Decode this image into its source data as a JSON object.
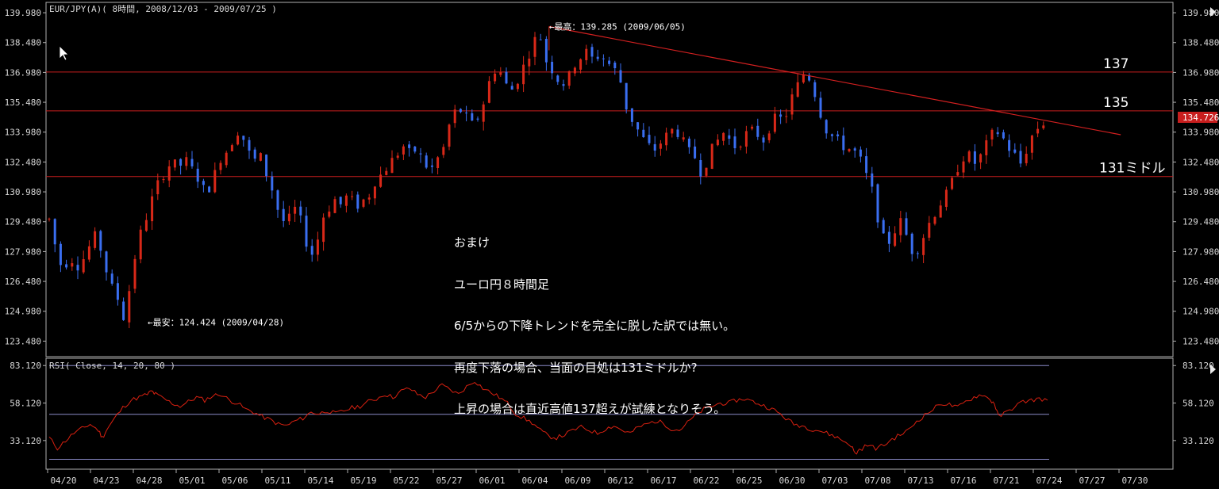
{
  "chart_data": {
    "type": "candlestick",
    "title": "EUR/JPY(A)( 8時間, 2008/12/03 - 2009/07/25 )",
    "price_axis": {
      "ylim": [
        122.7,
        140.5
      ],
      "ticks": [
        "139.980",
        "138.480",
        "136.980",
        "135.480",
        "133.980",
        "132.480",
        "130.980",
        "129.480",
        "127.980",
        "126.480",
        "124.980",
        "123.480"
      ],
      "current_price": "134.726"
    },
    "rsi_panel": {
      "label": "RSI( Close, 14, 20, 80 )",
      "ylim": [
        14,
        88
      ],
      "ticks": [
        "83.120",
        "58.120",
        "33.120"
      ],
      "levels": [
        83.12,
        50.62,
        20.62
      ]
    },
    "x_labels": [
      "04/20",
      "04/23",
      "04/28",
      "05/01",
      "05/06",
      "05/11",
      "05/14",
      "05/19",
      "05/22",
      "05/27",
      "06/01",
      "06/04",
      "06/09",
      "06/12",
      "06/17",
      "06/22",
      "06/25",
      "06/30",
      "07/03",
      "07/08",
      "07/13",
      "07/16",
      "07/21",
      "07/24",
      "07/27",
      "07/30"
    ],
    "horizontal_lines": [
      {
        "value": 137.0,
        "label": "137"
      },
      {
        "value": 135.05,
        "label": "135"
      },
      {
        "value": 131.75,
        "label": "131ミドル"
      }
    ],
    "trendline": {
      "from": {
        "date": "06/05",
        "value": 139.285
      },
      "to": {
        "date": "07/29",
        "value": 133.85
      }
    },
    "annotations": [
      {
        "text": "←最高：139.285 (2009/06/05)",
        "date": "06/05",
        "value": 139.285
      },
      {
        "text": "←最安：124.424 (2009/04/28)",
        "date": "04/28",
        "value": 124.424
      }
    ],
    "price_path": [
      [
        0,
        129.6
      ],
      [
        5,
        128.1
      ],
      [
        10,
        127.0
      ],
      [
        15,
        127.8
      ],
      [
        20,
        127.2
      ],
      [
        25,
        127.6
      ],
      [
        30,
        128.3
      ],
      [
        35,
        128.9
      ],
      [
        40,
        127.5
      ],
      [
        45,
        126.3
      ],
      [
        50,
        125.7
      ],
      [
        55,
        124.6
      ],
      [
        60,
        126.5
      ],
      [
        65,
        128.5
      ],
      [
        70,
        129.4
      ],
      [
        75,
        130.5
      ],
      [
        80,
        131.4
      ],
      [
        85,
        132.0
      ],
      [
        90,
        132.5
      ],
      [
        95,
        132.2
      ],
      [
        100,
        132.6
      ],
      [
        105,
        132.1
      ],
      [
        110,
        131.6
      ],
      [
        115,
        130.9
      ],
      [
        120,
        131.5
      ],
      [
        125,
        132.6
      ],
      [
        130,
        133.0
      ],
      [
        135,
        133.6
      ],
      [
        140,
        134.2
      ],
      [
        145,
        133.2
      ],
      [
        150,
        132.5
      ],
      [
        155,
        132.8
      ],
      [
        160,
        131.8
      ],
      [
        165,
        130.9
      ],
      [
        170,
        129.6
      ],
      [
        175,
        129.4
      ],
      [
        180,
        130.2
      ],
      [
        185,
        129.5
      ],
      [
        190,
        128.2
      ],
      [
        195,
        127.7
      ],
      [
        200,
        129.6
      ],
      [
        205,
        130.1
      ],
      [
        210,
        130.6
      ],
      [
        215,
        130.3
      ],
      [
        220,
        130.9
      ],
      [
        225,
        130.2
      ],
      [
        230,
        130.5
      ],
      [
        235,
        130.8
      ],
      [
        240,
        131.6
      ],
      [
        245,
        131.9
      ],
      [
        250,
        132.4
      ],
      [
        255,
        132.8
      ],
      [
        260,
        133.3
      ],
      [
        265,
        132.9
      ],
      [
        270,
        133.1
      ],
      [
        275,
        132.5
      ],
      [
        280,
        132.0
      ],
      [
        285,
        132.6
      ],
      [
        290,
        133.2
      ],
      [
        295,
        134.6
      ],
      [
        300,
        135.2
      ],
      [
        305,
        134.9
      ],
      [
        310,
        134.3
      ],
      [
        315,
        134.7
      ],
      [
        320,
        135.6
      ],
      [
        325,
        136.9
      ],
      [
        330,
        137.3
      ],
      [
        335,
        136.4
      ],
      [
        340,
        136.1
      ],
      [
        345,
        136.7
      ],
      [
        350,
        137.5
      ],
      [
        355,
        138.3
      ],
      [
        360,
        139.1
      ],
      [
        365,
        137.6
      ],
      [
        370,
        137.1
      ],
      [
        375,
        136.5
      ],
      [
        380,
        136.4
      ],
      [
        385,
        137.3
      ],
      [
        390,
        137.7
      ],
      [
        395,
        138.0
      ],
      [
        400,
        137.6
      ],
      [
        405,
        137.9
      ],
      [
        410,
        137.5
      ],
      [
        415,
        137.2
      ],
      [
        420,
        136.5
      ],
      [
        425,
        135.0
      ],
      [
        430,
        134.4
      ],
      [
        435,
        133.8
      ],
      [
        440,
        133.3
      ],
      [
        445,
        133.1
      ],
      [
        450,
        133.5
      ],
      [
        455,
        133.9
      ],
      [
        460,
        134.2
      ],
      [
        465,
        133.6
      ],
      [
        470,
        133.0
      ],
      [
        475,
        132.7
      ],
      [
        480,
        131.8
      ],
      [
        485,
        132.9
      ],
      [
        490,
        133.4
      ],
      [
        495,
        134.0
      ],
      [
        500,
        133.6
      ],
      [
        505,
        133.2
      ],
      [
        510,
        133.7
      ],
      [
        515,
        134.1
      ],
      [
        520,
        133.9
      ],
      [
        525,
        133.6
      ],
      [
        530,
        134.3
      ],
      [
        535,
        134.8
      ],
      [
        540,
        134.5
      ],
      [
        545,
        135.6
      ],
      [
        550,
        136.3
      ],
      [
        555,
        137.0
      ],
      [
        560,
        136.6
      ],
      [
        565,
        135.4
      ],
      [
        570,
        134.2
      ],
      [
        575,
        133.8
      ],
      [
        580,
        133.5
      ],
      [
        585,
        133.2
      ],
      [
        590,
        133.1
      ],
      [
        595,
        132.8
      ],
      [
        600,
        131.9
      ],
      [
        605,
        131.0
      ],
      [
        610,
        129.4
      ],
      [
        615,
        128.2
      ],
      [
        620,
        128.8
      ],
      [
        625,
        129.6
      ],
      [
        630,
        128.8
      ],
      [
        635,
        127.9
      ],
      [
        640,
        128.3
      ],
      [
        645,
        129.2
      ],
      [
        650,
        129.8
      ],
      [
        655,
        130.4
      ],
      [
        660,
        130.9
      ],
      [
        665,
        131.7
      ],
      [
        670,
        132.6
      ],
      [
        675,
        132.9
      ],
      [
        680,
        132.4
      ],
      [
        685,
        132.8
      ],
      [
        690,
        133.5
      ],
      [
        695,
        134.1
      ],
      [
        700,
        133.8
      ],
      [
        705,
        133.2
      ],
      [
        710,
        132.8
      ],
      [
        715,
        132.3
      ],
      [
        720,
        133.5
      ],
      [
        725,
        134.1
      ],
      [
        730,
        134.4
      ],
      [
        735,
        134.7
      ]
    ],
    "rsi_path": [
      [
        0,
        35
      ],
      [
        10,
        28
      ],
      [
        20,
        33
      ],
      [
        30,
        38
      ],
      [
        40,
        41
      ],
      [
        50,
        44
      ],
      [
        60,
        40
      ],
      [
        65,
        35
      ],
      [
        70,
        40
      ],
      [
        80,
        48
      ],
      [
        90,
        55
      ],
      [
        100,
        60
      ],
      [
        110,
        62
      ],
      [
        120,
        64
      ],
      [
        125,
        66
      ],
      [
        130,
        64
      ],
      [
        140,
        61
      ],
      [
        150,
        58
      ],
      [
        160,
        56
      ],
      [
        170,
        59
      ],
      [
        180,
        62
      ],
      [
        190,
        60
      ],
      [
        200,
        63
      ],
      [
        210,
        64
      ],
      [
        220,
        60
      ],
      [
        230,
        58
      ],
      [
        240,
        54
      ],
      [
        250,
        52
      ],
      [
        260,
        49
      ],
      [
        270,
        47
      ],
      [
        280,
        44
      ],
      [
        290,
        43
      ],
      [
        300,
        46
      ],
      [
        310,
        48
      ],
      [
        320,
        52
      ],
      [
        330,
        51
      ],
      [
        340,
        53
      ],
      [
        350,
        51
      ],
      [
        360,
        53
      ],
      [
        370,
        55
      ],
      [
        380,
        56
      ],
      [
        390,
        59
      ],
      [
        400,
        61
      ],
      [
        410,
        64
      ],
      [
        420,
        62
      ],
      [
        430,
        66
      ],
      [
        440,
        68
      ],
      [
        450,
        64
      ],
      [
        460,
        62
      ],
      [
        470,
        66
      ],
      [
        480,
        70
      ],
      [
        490,
        67
      ],
      [
        500,
        64
      ],
      [
        510,
        69
      ],
      [
        520,
        73
      ],
      [
        530,
        68
      ],
      [
        540,
        65
      ],
      [
        550,
        62
      ],
      [
        560,
        58
      ],
      [
        570,
        51
      ],
      [
        580,
        48
      ],
      [
        590,
        45
      ],
      [
        600,
        40
      ],
      [
        610,
        36
      ],
      [
        620,
        35
      ],
      [
        630,
        37
      ],
      [
        640,
        40
      ],
      [
        650,
        42
      ],
      [
        660,
        40
      ],
      [
        670,
        38
      ],
      [
        680,
        41
      ],
      [
        690,
        43
      ],
      [
        700,
        40
      ],
      [
        710,
        38
      ],
      [
        720,
        42
      ],
      [
        730,
        44
      ],
      [
        740,
        46
      ],
      [
        750,
        45
      ],
      [
        760,
        41
      ],
      [
        770,
        40
      ],
      [
        780,
        45
      ],
      [
        790,
        50
      ],
      [
        800,
        54
      ],
      [
        810,
        56
      ],
      [
        820,
        58
      ],
      [
        830,
        58
      ],
      [
        840,
        60
      ],
      [
        850,
        61
      ],
      [
        860,
        59
      ],
      [
        870,
        57
      ],
      [
        880,
        55
      ],
      [
        890,
        52
      ],
      [
        900,
        48
      ],
      [
        910,
        44
      ],
      [
        920,
        43
      ],
      [
        930,
        41
      ],
      [
        940,
        40
      ],
      [
        950,
        38
      ],
      [
        960,
        36
      ],
      [
        970,
        33
      ],
      [
        980,
        30
      ],
      [
        985,
        24
      ],
      [
        990,
        27
      ],
      [
        1000,
        30
      ],
      [
        1010,
        28
      ],
      [
        1020,
        30
      ],
      [
        1030,
        34
      ],
      [
        1040,
        37
      ],
      [
        1050,
        40
      ],
      [
        1060,
        46
      ],
      [
        1070,
        50
      ],
      [
        1080,
        54
      ],
      [
        1090,
        58
      ],
      [
        1100,
        57
      ],
      [
        1110,
        55
      ],
      [
        1120,
        59
      ],
      [
        1130,
        62
      ],
      [
        1140,
        64
      ],
      [
        1150,
        60
      ],
      [
        1155,
        58
      ],
      [
        1160,
        49
      ],
      [
        1170,
        52
      ],
      [
        1180,
        56
      ],
      [
        1190,
        59
      ],
      [
        1200,
        60
      ],
      [
        1210,
        61
      ],
      [
        1220,
        60
      ]
    ]
  },
  "memo": {
    "lines": [
      "おまけ",
      "ユーロ円８時間足",
      "6/5からの下降トレンドを完全に脱した訳では無い。",
      "再度下落の場合、当面の目処は131ミドルか?",
      "上昇の場合は直近高値137超えが試練となりそう。"
    ]
  },
  "colors": {
    "background": "#000000",
    "grid_frame": "#b0b0b0",
    "axis_text": "#d8d8d8",
    "up_candle": "#d82818",
    "down_candle": "#3a6ef0",
    "horizontal_line": "#c81e1e",
    "trendline": "#d42020",
    "rsi_line": "#d82010",
    "rsi_levels": "#8b8bc8",
    "price_tag_bg": "#c81e1e",
    "mouse_cursor": "#ffffff"
  }
}
